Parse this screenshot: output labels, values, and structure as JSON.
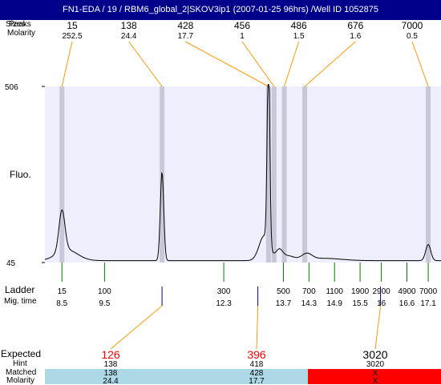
{
  "window": {
    "title": "FN1-EDA / 19 / RBM6_global_2|SKOV3ip1 (2007-01-25 96hrs) /Well ID 1052875"
  },
  "labels": {
    "sizes_overprint_a": "Sizes",
    "sizes_overprint_b": "Peaks",
    "molarity": "Molarity",
    "fluo": "Fluo.",
    "ladder": "Ladder",
    "mig_time": "Mig. time",
    "expected": "Expected",
    "hint": "Hint",
    "matched": "Matched",
    "molarity_bottom": "Molarity"
  },
  "colors": {
    "title_bg": "#00008b",
    "plot_bg": "#eeeefd",
    "peak_band": "#c8c8d8",
    "connector": "#ff9900",
    "trace": "#000000",
    "ladder_tick": "#008000",
    "marker_tick": "#00008b",
    "expected_red": "#ff0000",
    "match_ok": "#add8e6",
    "match_fail": "#ff0000"
  },
  "chart_data": {
    "type": "line",
    "title": "FN1-EDA / 19 / RBM6_global_2|SKOV3ip1 (2007-01-25 96hrs) /Well ID 1052875",
    "ylabel": "Fluo.",
    "xlabel": "",
    "ylim": [
      45,
      506
    ],
    "ytick_labels": [
      "506",
      "45"
    ],
    "xlim": [
      8.1,
      17.4
    ],
    "grid": false,
    "peaks": [
      {
        "size": "15",
        "molarity": "252.5",
        "time": 8.5,
        "height": 108
      },
      {
        "size": "138",
        "molarity": "24.4",
        "time": 10.85,
        "height": 232
      },
      {
        "size": "428",
        "molarity": "17.7",
        "time": 13.35,
        "height": 506
      },
      {
        "size": "456",
        "molarity": "1",
        "time": 13.48,
        "height": 0
      },
      {
        "size": "486",
        "molarity": "1.5",
        "time": 13.72,
        "height": 0
      },
      {
        "size": "676",
        "molarity": "1.6",
        "time": 14.2,
        "height": 0
      },
      {
        "size": "7000",
        "molarity": "0.5",
        "time": 17.1,
        "height": 0
      }
    ],
    "ladder": [
      {
        "size": "15",
        "time": "8.5"
      },
      {
        "size": "100",
        "time": "9.5"
      },
      {
        "size": "300",
        "time": "12.3"
      },
      {
        "size": "500",
        "time": "13.7"
      },
      {
        "size": "700",
        "time": "14.3"
      },
      {
        "size": "1100",
        "time": "14.9"
      },
      {
        "size": "1900",
        "time": "15.5"
      },
      {
        "size": "2900",
        "time": "16"
      },
      {
        "size": "4900",
        "time": "16.6"
      },
      {
        "size": "7000",
        "time": "17.1"
      }
    ],
    "trace": {
      "baseline": 50,
      "components": [
        {
          "center": 8.5,
          "height": 108,
          "width": 0.07
        },
        {
          "center": 8.62,
          "height": 28,
          "width": 0.25
        },
        {
          "center": 10.85,
          "height": 232,
          "width": 0.04
        },
        {
          "center": 13.35,
          "height": 510,
          "width": 0.03
        },
        {
          "center": 13.25,
          "height": 65,
          "width": 0.12
        },
        {
          "center": 13.6,
          "height": 25,
          "width": 0.08
        },
        {
          "center": 13.8,
          "height": 12,
          "width": 0.15
        },
        {
          "center": 14.25,
          "height": 16,
          "width": 0.12
        },
        {
          "center": 14.65,
          "height": 6,
          "width": 0.4
        },
        {
          "center": 17.1,
          "height": 42,
          "width": 0.06
        }
      ]
    },
    "expected": [
      {
        "label": "126",
        "color": "#ff0000",
        "hint": "138",
        "matched": "138",
        "molarity": "24.4",
        "status": "ok"
      },
      {
        "label": "396",
        "color": "#ff0000",
        "hint": "418",
        "matched": "428",
        "molarity": "17.7",
        "status": "ok"
      },
      {
        "label": "3020",
        "color": "#000000",
        "hint": "3020",
        "matched": "X",
        "molarity": "X",
        "status": "fail"
      }
    ]
  }
}
